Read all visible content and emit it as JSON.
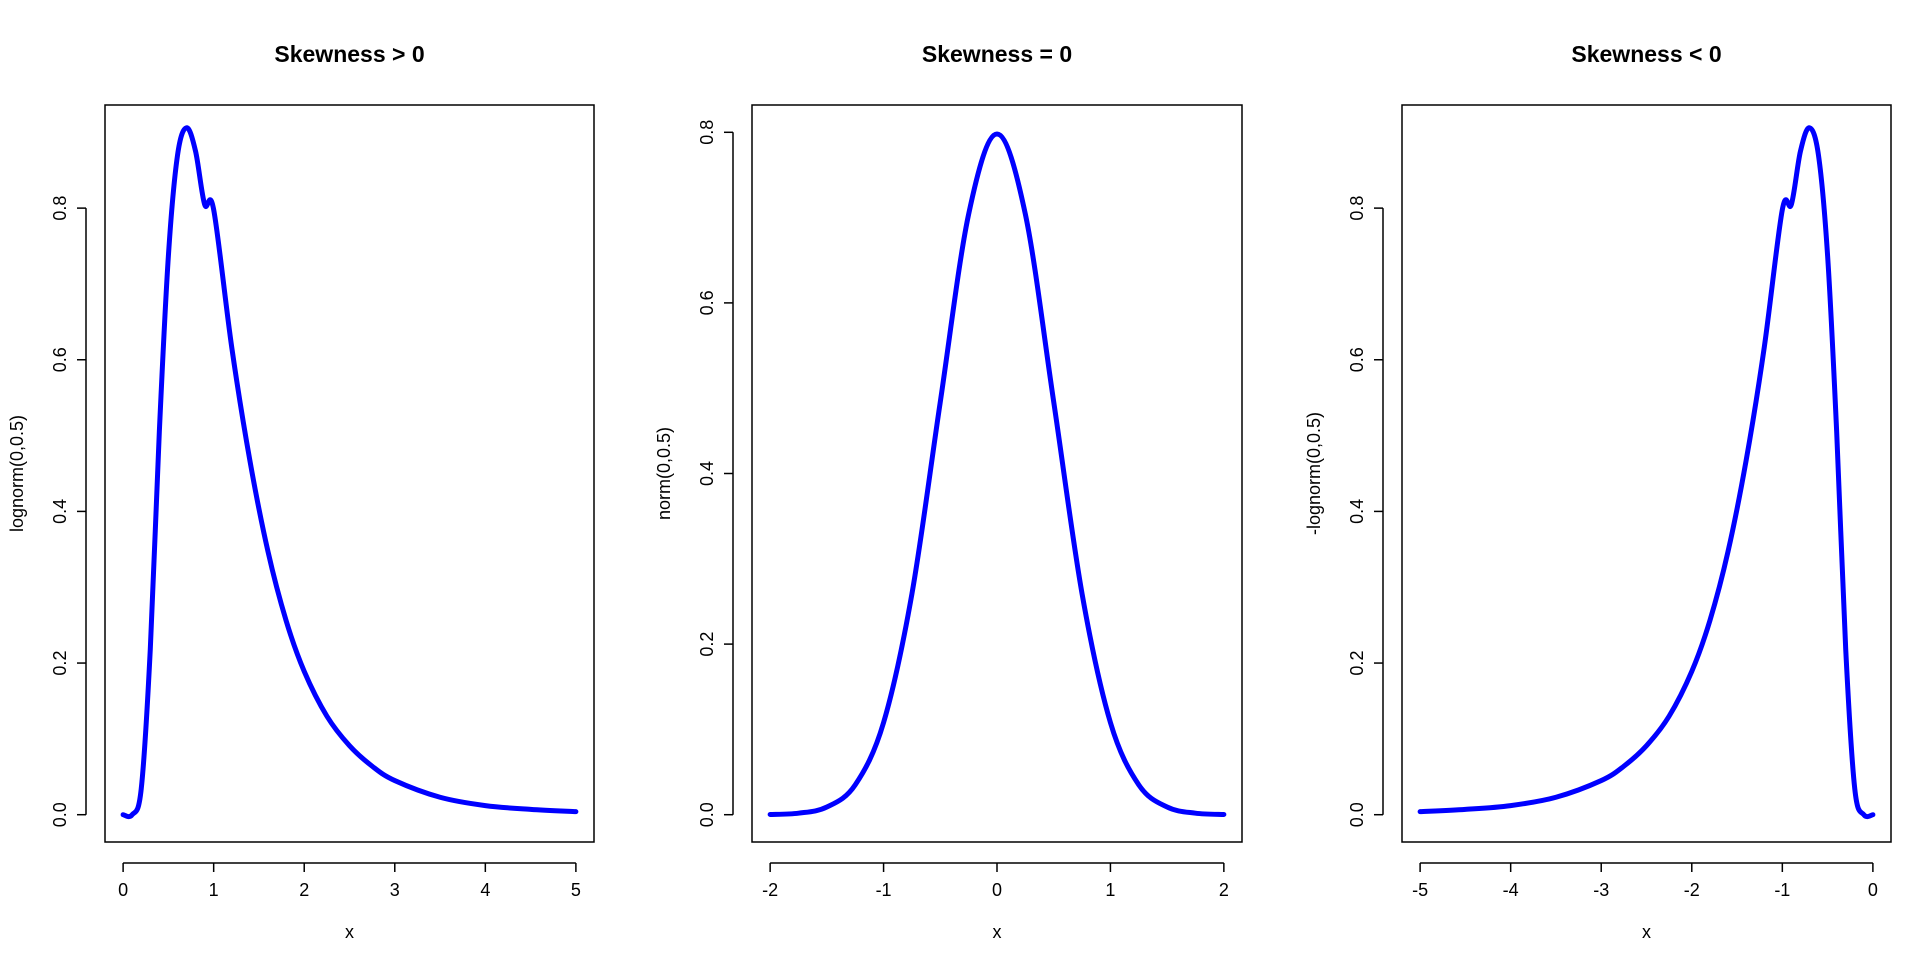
{
  "colors": {
    "curve": "#0000ff",
    "axis": "#000000",
    "background": "#ffffff"
  },
  "chart_data": [
    {
      "type": "line",
      "title": "Skewness > 0",
      "xlabel": "x",
      "ylabel": "lognorm(0,0.5)",
      "xlim": [
        0,
        5
      ],
      "ylim": [
        0,
        0.9
      ],
      "xticks": [
        0,
        1,
        2,
        3,
        4,
        5
      ],
      "xtick_labels": [
        "0",
        "1",
        "2",
        "3",
        "4",
        "5"
      ],
      "yticks": [
        0.0,
        0.2,
        0.4,
        0.6,
        0.8
      ],
      "ytick_labels": [
        "0.0",
        "0.2",
        "0.4",
        "0.6",
        "0.8"
      ],
      "grid": false,
      "series": [
        {
          "x": [
            0.0,
            0.1,
            0.2,
            0.3,
            0.4,
            0.5,
            0.6,
            0.7,
            0.8,
            0.9,
            1.0,
            1.2,
            1.4,
            1.6,
            1.8,
            2.0,
            2.25,
            2.5,
            2.75,
            3.0,
            3.5,
            4.0,
            4.5,
            5.0
          ],
          "y": [
            0.0,
            0.0,
            0.034,
            0.218,
            0.505,
            0.737,
            0.869,
            0.906,
            0.875,
            0.805,
            0.798,
            0.616,
            0.467,
            0.347,
            0.256,
            0.189,
            0.13,
            0.091,
            0.064,
            0.045,
            0.023,
            0.012,
            0.007,
            0.004
          ]
        }
      ]
    },
    {
      "type": "line",
      "title": "Skewness = 0",
      "xlabel": "x",
      "ylabel": "norm(0,0.5)",
      "xlim": [
        -2,
        2
      ],
      "ylim": [
        0,
        0.8
      ],
      "xticks": [
        -2,
        -1,
        0,
        1,
        2
      ],
      "xtick_labels": [
        "-2",
        "-1",
        "0",
        "1",
        "2"
      ],
      "yticks": [
        0.0,
        0.2,
        0.4,
        0.6,
        0.8
      ],
      "ytick_labels": [
        "0.0",
        "0.2",
        "0.4",
        "0.6",
        "0.8"
      ],
      "grid": false,
      "series": [
        {
          "x": [
            -2.0,
            -1.75,
            -1.5,
            -1.25,
            -1.0,
            -0.75,
            -0.5,
            -0.25,
            0.0,
            0.25,
            0.5,
            0.75,
            1.0,
            1.25,
            1.5,
            1.75,
            2.0
          ],
          "y": [
            0.0003,
            0.0018,
            0.009,
            0.035,
            0.108,
            0.259,
            0.484,
            0.704,
            0.798,
            0.704,
            0.484,
            0.259,
            0.108,
            0.035,
            0.009,
            0.0018,
            0.0003
          ]
        }
      ]
    },
    {
      "type": "line",
      "title": "Skewness < 0",
      "xlabel": "x",
      "ylabel": "-lognorm(0,0.5)",
      "xlim": [
        -5,
        0
      ],
      "ylim": [
        0,
        0.9
      ],
      "xticks": [
        -5,
        -4,
        -3,
        -2,
        -1,
        0
      ],
      "xtick_labels": [
        "-5",
        "-4",
        "-3",
        "-2",
        "-1",
        "0"
      ],
      "yticks": [
        0.0,
        0.2,
        0.4,
        0.6,
        0.8
      ],
      "ytick_labels": [
        "0.0",
        "0.2",
        "0.4",
        "0.6",
        "0.8"
      ],
      "grid": false,
      "series": [
        {
          "x": [
            -5.0,
            -4.5,
            -4.0,
            -3.5,
            -3.0,
            -2.75,
            -2.5,
            -2.25,
            -2.0,
            -1.8,
            -1.6,
            -1.4,
            -1.2,
            -1.0,
            -0.9,
            -0.8,
            -0.7,
            -0.6,
            -0.5,
            -0.4,
            -0.3,
            -0.2,
            -0.1,
            0.0
          ],
          "y": [
            0.004,
            0.007,
            0.012,
            0.023,
            0.045,
            0.064,
            0.091,
            0.13,
            0.189,
            0.256,
            0.347,
            0.467,
            0.616,
            0.798,
            0.805,
            0.875,
            0.906,
            0.869,
            0.737,
            0.505,
            0.218,
            0.034,
            0.0,
            0.0
          ]
        }
      ]
    }
  ]
}
